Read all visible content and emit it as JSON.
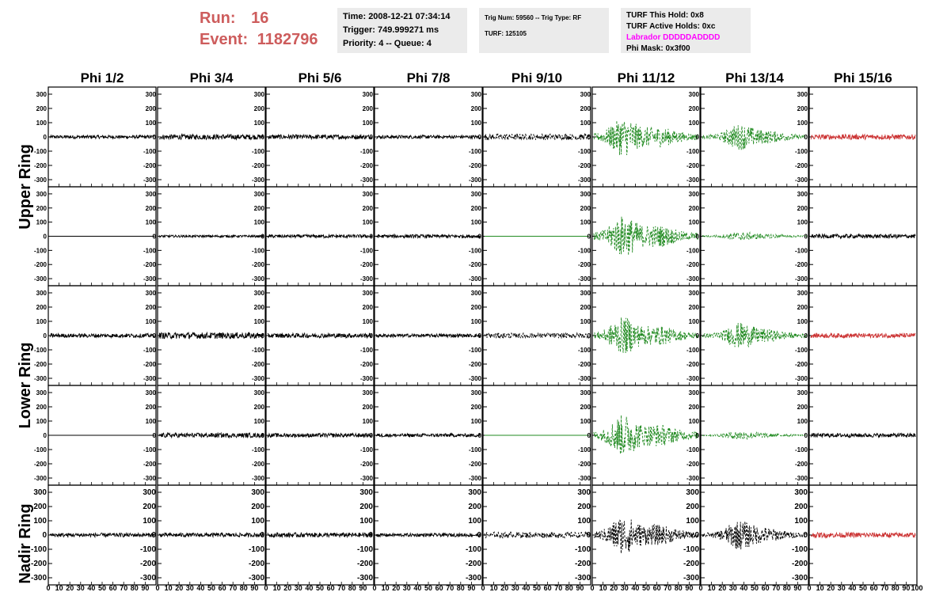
{
  "header": {
    "run_label": "Run:",
    "run_value": "16",
    "event_label": "Event:",
    "event_value": "1182796",
    "time": "Time: 2008-12-21 07:34:14",
    "trigger": "Trigger: 749.999271 ms",
    "priority": "Priority: 4 -- Queue: 4",
    "trig_num": "Trig Num: 59560 -- Trig Type: RF",
    "turf": "TURF: 125105",
    "turf_this_hold": "TURF This Hold: 0x8",
    "turf_active_holds": "TURF Active Holds: 0xc",
    "labrador": "Labrador DDDDDADDDD",
    "phi_mask": "Phi Mask: 0x3f00"
  },
  "colors": {
    "run_text": "#cd5c5c",
    "labrador_text": "#ff00ff",
    "trace_black": "#000000",
    "trace_green": "#228b22",
    "trace_red": "#cc3333",
    "info_bg": "#ebebeb"
  },
  "columns": [
    "Phi 1/2",
    "Phi 3/4",
    "Phi 5/6",
    "Phi 7/8",
    "Phi 9/10",
    "Phi 11/12",
    "Phi 13/14",
    "Phi 15/16"
  ],
  "ring_labels": [
    "Upper Ring",
    "Lower Ring",
    "Nadir Ring"
  ],
  "chart_data": {
    "type": "line",
    "y_ticks": [
      "300",
      "200",
      "100",
      "0",
      "-100",
      "-200",
      "-300"
    ],
    "x_ticks": [
      "0",
      "10",
      "20",
      "30",
      "40",
      "50",
      "60",
      "70",
      "80",
      "90",
      "100"
    ],
    "xlim": [
      0,
      100
    ],
    "ylim": [
      -350,
      350
    ],
    "rows": 5,
    "panels": [
      {
        "row": 0,
        "col": 0,
        "style": "black",
        "amp": 12
      },
      {
        "row": 0,
        "col": 1,
        "style": "black",
        "amp": 18
      },
      {
        "row": 0,
        "col": 2,
        "style": "black",
        "amp": 16
      },
      {
        "row": 0,
        "col": 3,
        "style": "black",
        "amp": 12
      },
      {
        "row": 0,
        "col": 4,
        "style": "black-dashed",
        "amp": 22
      },
      {
        "row": 0,
        "col": 5,
        "style": "green",
        "amp": 110
      },
      {
        "row": 0,
        "col": 6,
        "style": "green",
        "amp": 70
      },
      {
        "row": 0,
        "col": 7,
        "style": "red",
        "amp": 18
      },
      {
        "row": 1,
        "col": 0,
        "style": "flat-black",
        "amp": 0
      },
      {
        "row": 1,
        "col": 1,
        "style": "black",
        "amp": 8
      },
      {
        "row": 1,
        "col": 2,
        "style": "black",
        "amp": 12
      },
      {
        "row": 1,
        "col": 3,
        "style": "black",
        "amp": 12
      },
      {
        "row": 1,
        "col": 4,
        "style": "flat-green",
        "amp": 0
      },
      {
        "row": 1,
        "col": 5,
        "style": "green",
        "amp": 120
      },
      {
        "row": 1,
        "col": 6,
        "style": "green",
        "amp": 25
      },
      {
        "row": 1,
        "col": 7,
        "style": "black",
        "amp": 14
      },
      {
        "row": 2,
        "col": 0,
        "style": "black",
        "amp": 14
      },
      {
        "row": 2,
        "col": 1,
        "style": "black",
        "amp": 22
      },
      {
        "row": 2,
        "col": 2,
        "style": "black",
        "amp": 16
      },
      {
        "row": 2,
        "col": 3,
        "style": "black",
        "amp": 12
      },
      {
        "row": 2,
        "col": 4,
        "style": "black-dashed",
        "amp": 18
      },
      {
        "row": 2,
        "col": 5,
        "style": "green",
        "amp": 105
      },
      {
        "row": 2,
        "col": 6,
        "style": "green",
        "amp": 70
      },
      {
        "row": 2,
        "col": 7,
        "style": "red",
        "amp": 16
      },
      {
        "row": 3,
        "col": 0,
        "style": "flat-black",
        "amp": 0
      },
      {
        "row": 3,
        "col": 1,
        "style": "black",
        "amp": 16
      },
      {
        "row": 3,
        "col": 2,
        "style": "black",
        "amp": 14
      },
      {
        "row": 3,
        "col": 3,
        "style": "black",
        "amp": 12
      },
      {
        "row": 3,
        "col": 4,
        "style": "flat-green",
        "amp": 0
      },
      {
        "row": 3,
        "col": 5,
        "style": "green",
        "amp": 120
      },
      {
        "row": 3,
        "col": 6,
        "style": "green",
        "amp": 25
      },
      {
        "row": 3,
        "col": 7,
        "style": "black",
        "amp": 14
      },
      {
        "row": 4,
        "col": 0,
        "style": "black",
        "amp": 14
      },
      {
        "row": 4,
        "col": 1,
        "style": "black",
        "amp": 14
      },
      {
        "row": 4,
        "col": 2,
        "style": "black",
        "amp": 16
      },
      {
        "row": 4,
        "col": 3,
        "style": "black",
        "amp": 12
      },
      {
        "row": 4,
        "col": 4,
        "style": "black-dashed",
        "amp": 20
      },
      {
        "row": 4,
        "col": 5,
        "style": "black-dashed",
        "amp": 110
      },
      {
        "row": 4,
        "col": 6,
        "style": "black-dashed",
        "amp": 80
      },
      {
        "row": 4,
        "col": 7,
        "style": "red",
        "amp": 18
      }
    ]
  }
}
